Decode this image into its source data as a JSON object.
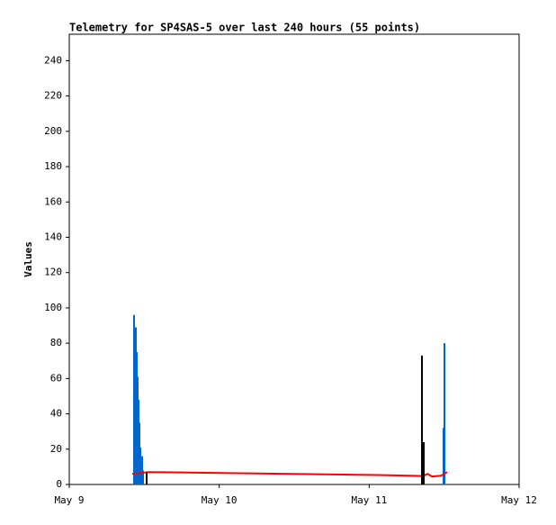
{
  "chart_data": {
    "type": "line",
    "title": "Telemetry for SP4SAS-5 over last 240 hours (55 points)",
    "y_label": "Values",
    "xlim": [
      0,
      3
    ],
    "xticks": [
      {
        "value": 0,
        "label": "May 9"
      },
      {
        "value": 1,
        "label": "May 10"
      },
      {
        "value": 2,
        "label": "May 11"
      },
      {
        "value": 3,
        "label": "May 12"
      }
    ],
    "ylim": [
      0,
      255
    ],
    "yticks": [
      0,
      20,
      40,
      60,
      80,
      100,
      120,
      140,
      160,
      180,
      200,
      220,
      240
    ],
    "series": [
      {
        "style": "impulse",
        "color": "#0066cc",
        "x": [
          0.432,
          0.444,
          0.45,
          0.456,
          0.462,
          0.468,
          0.474,
          0.48,
          0.486,
          0.492,
          2.496,
          2.502
        ],
        "values": [
          96,
          89,
          75,
          61,
          48,
          35,
          21,
          16,
          16,
          8,
          32,
          80
        ]
      },
      {
        "style": "line",
        "color": "#ff0000",
        "x": [
          0.42,
          0.53,
          0.75,
          1.2,
          1.65,
          2.1,
          2.36,
          2.39,
          2.42,
          2.48,
          2.52
        ],
        "values": [
          6,
          7,
          6.8,
          6.3,
          5.8,
          5.3,
          4.8,
          6,
          4.5,
          5,
          7
        ]
      },
      {
        "style": "impulse",
        "color": "#000000",
        "x": [
          0.516,
          2.352,
          2.364
        ],
        "values": [
          7,
          73,
          24
        ]
      }
    ]
  }
}
